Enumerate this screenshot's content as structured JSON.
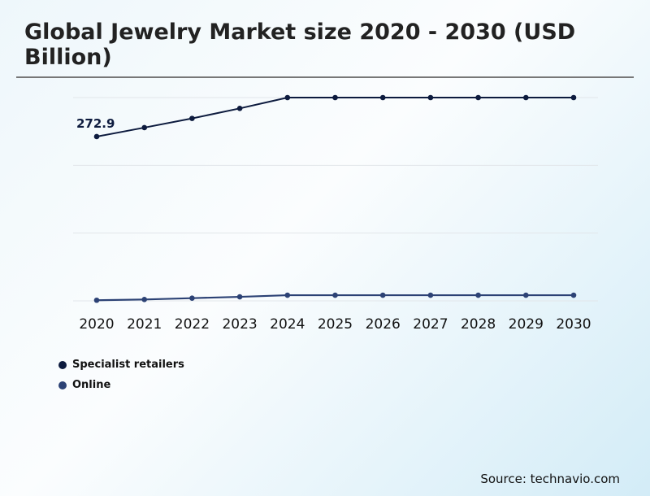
{
  "chart_data": {
    "type": "line",
    "title": "Global Jewelry Market size 2020 - 2030 (USD Billion)",
    "categories": [
      "2020",
      "2021",
      "2022",
      "2023",
      "2024",
      "2025",
      "2026",
      "2027",
      "2028",
      "2029",
      "2030"
    ],
    "series": [
      {
        "name": "Specialist retailers",
        "color": "#0d1b3e",
        "values": [
          272.9,
          287.8,
          303.1,
          319.7,
          337.7,
          337.7,
          337.7,
          337.7,
          337.7,
          337.7,
          337.7
        ]
      },
      {
        "name": "Online",
        "color": "#2c4275",
        "values": [
          1.0,
          2.3,
          4.5,
          6.7,
          9.4,
          9.4,
          9.4,
          9.4,
          9.4,
          9.4,
          9.4
        ]
      }
    ],
    "data_labels": [
      {
        "series": 0,
        "index": 0,
        "text": "272.9"
      }
    ],
    "ylim": [
      0,
      337.7
    ],
    "grid": true,
    "y_tick_labels": false,
    "legend_position": "bottom-left"
  },
  "source": "Source: technavio.com"
}
